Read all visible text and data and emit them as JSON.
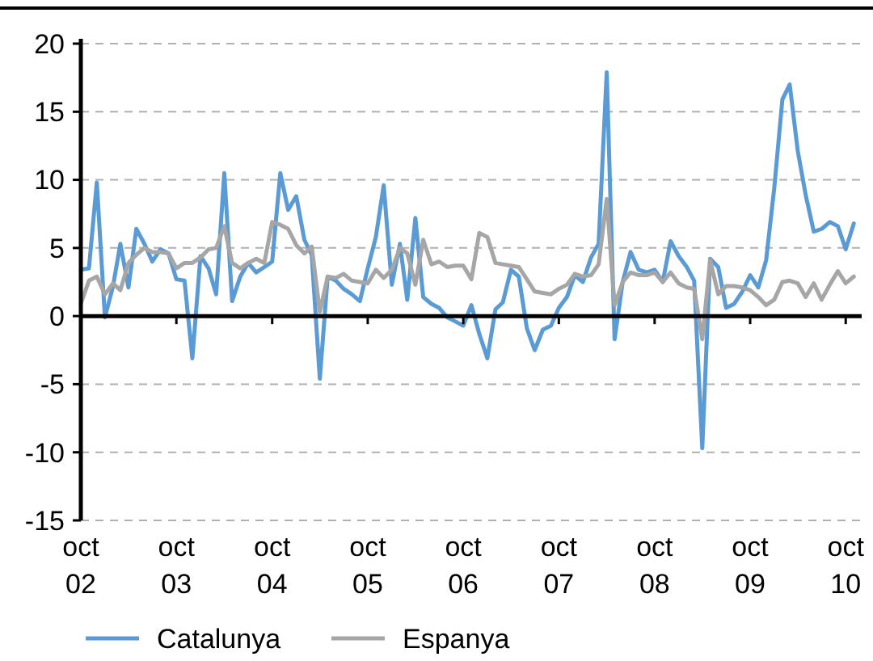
{
  "chart_data": {
    "type": "line",
    "x": [
      "2002-10",
      "2002-11",
      "2002-12",
      "2003-01",
      "2003-02",
      "2003-03",
      "2003-04",
      "2003-05",
      "2003-06",
      "2003-07",
      "2003-08",
      "2003-09",
      "2003-10",
      "2003-11",
      "2003-12",
      "2004-01",
      "2004-02",
      "2004-03",
      "2004-04",
      "2004-05",
      "2004-06",
      "2004-07",
      "2004-08",
      "2004-09",
      "2004-10",
      "2004-11",
      "2004-12",
      "2005-01",
      "2005-02",
      "2005-03",
      "2005-04",
      "2005-05",
      "2005-06",
      "2005-07",
      "2005-08",
      "2005-09",
      "2005-10",
      "2005-11",
      "2005-12",
      "2006-01",
      "2006-02",
      "2006-03",
      "2006-04",
      "2006-05",
      "2006-06",
      "2006-07",
      "2006-08",
      "2006-09",
      "2006-10",
      "2006-11",
      "2006-12",
      "2007-01",
      "2007-02",
      "2007-03",
      "2007-04",
      "2007-05",
      "2007-06",
      "2007-07",
      "2007-08",
      "2007-09",
      "2007-10",
      "2007-11",
      "2007-12",
      "2008-01",
      "2008-02",
      "2008-03",
      "2008-04",
      "2008-05",
      "2008-06",
      "2008-07",
      "2008-08",
      "2008-09",
      "2008-10",
      "2008-11",
      "2008-12",
      "2009-01",
      "2009-02",
      "2009-03",
      "2009-04",
      "2009-05",
      "2009-06",
      "2009-07",
      "2009-08",
      "2009-09",
      "2009-10",
      "2009-11",
      "2009-12",
      "2010-01",
      "2010-02",
      "2010-03",
      "2010-04",
      "2010-05",
      "2010-06",
      "2010-07",
      "2010-08",
      "2010-09",
      "2010-10",
      "2010-11"
    ],
    "series": [
      {
        "name": "Catalunya",
        "color": "#5b9bd5",
        "values": [
          3.4,
          3.5,
          9.8,
          -0.1,
          2.2,
          5.3,
          2.1,
          6.4,
          5.3,
          4.0,
          4.9,
          4.6,
          2.7,
          2.6,
          -3.1,
          4.4,
          3.5,
          1.6,
          10.5,
          1.1,
          2.9,
          3.9,
          3.2,
          3.6,
          4.0,
          10.5,
          7.8,
          8.8,
          5.6,
          4.5,
          -4.6,
          2.9,
          2.6,
          2.0,
          1.6,
          1.1,
          3.5,
          5.8,
          9.6,
          2.3,
          5.3,
          1.2,
          7.2,
          1.4,
          0.9,
          0.6,
          -0.1,
          -0.4,
          -0.7,
          0.8,
          -1.3,
          -3.1,
          0.5,
          1.0,
          3.4,
          2.9,
          -0.9,
          -2.5,
          -1.0,
          -0.7,
          0.6,
          1.4,
          3.0,
          2.5,
          4.3,
          5.3,
          17.9,
          -1.7,
          2.5,
          4.7,
          3.4,
          3.2,
          3.4,
          2.5,
          5.5,
          4.4,
          3.6,
          2.6,
          -9.7,
          4.2,
          3.6,
          0.6,
          0.9,
          1.8,
          3.0,
          2.1,
          4.1,
          9.4,
          15.9,
          17.0,
          12.1,
          8.9,
          6.2,
          6.4,
          6.9,
          6.6,
          4.9,
          6.8
        ]
      },
      {
        "name": "Espanya",
        "color": "#a6a6a6",
        "values": [
          0.9,
          2.6,
          2.9,
          1.6,
          2.4,
          1.9,
          3.9,
          4.5,
          5.0,
          4.7,
          4.7,
          4.6,
          3.5,
          3.9,
          3.9,
          4.3,
          4.9,
          5.0,
          6.6,
          3.9,
          3.5,
          3.9,
          4.2,
          3.9,
          6.9,
          6.7,
          6.4,
          5.2,
          4.6,
          5.1,
          0.3,
          2.9,
          2.8,
          3.1,
          2.6,
          2.5,
          2.4,
          3.4,
          2.8,
          3.4,
          5.0,
          4.6,
          2.3,
          5.6,
          3.8,
          4.0,
          3.6,
          3.7,
          3.7,
          2.7,
          6.1,
          5.8,
          3.9,
          3.8,
          3.7,
          3.6,
          2.7,
          1.8,
          1.7,
          1.6,
          2.0,
          2.3,
          3.1,
          2.9,
          3.0,
          3.8,
          8.6,
          0.8,
          2.5,
          3.2,
          3.0,
          3.0,
          3.2,
          2.5,
          3.2,
          2.4,
          2.1,
          2.0,
          -1.7,
          4.1,
          1.6,
          2.2,
          2.2,
          2.1,
          1.9,
          1.4,
          0.8,
          1.2,
          2.5,
          2.6,
          2.4,
          1.4,
          2.4,
          1.2,
          2.3,
          3.3,
          2.4,
          2.9
        ]
      }
    ],
    "xlim": [
      "2002-10",
      "2010-12"
    ],
    "xticks": [
      {
        "value": "2002-10",
        "label": "oct 02"
      },
      {
        "value": "2003-10",
        "label": "oct 03"
      },
      {
        "value": "2004-10",
        "label": "oct 04"
      },
      {
        "value": "2005-10",
        "label": "oct 05"
      },
      {
        "value": "2006-10",
        "label": "oct 06"
      },
      {
        "value": "2007-10",
        "label": "oct 07"
      },
      {
        "value": "2008-10",
        "label": "oct 08"
      },
      {
        "value": "2009-10",
        "label": "oct 09"
      },
      {
        "value": "2010-10",
        "label": "oct 10"
      }
    ],
    "ylim": [
      -15,
      20
    ],
    "yticks": [
      -15,
      -10,
      -5,
      0,
      5,
      10,
      15,
      20
    ],
    "grid": "y",
    "legend": "bottom",
    "marker": "none",
    "line_style": "solid"
  }
}
